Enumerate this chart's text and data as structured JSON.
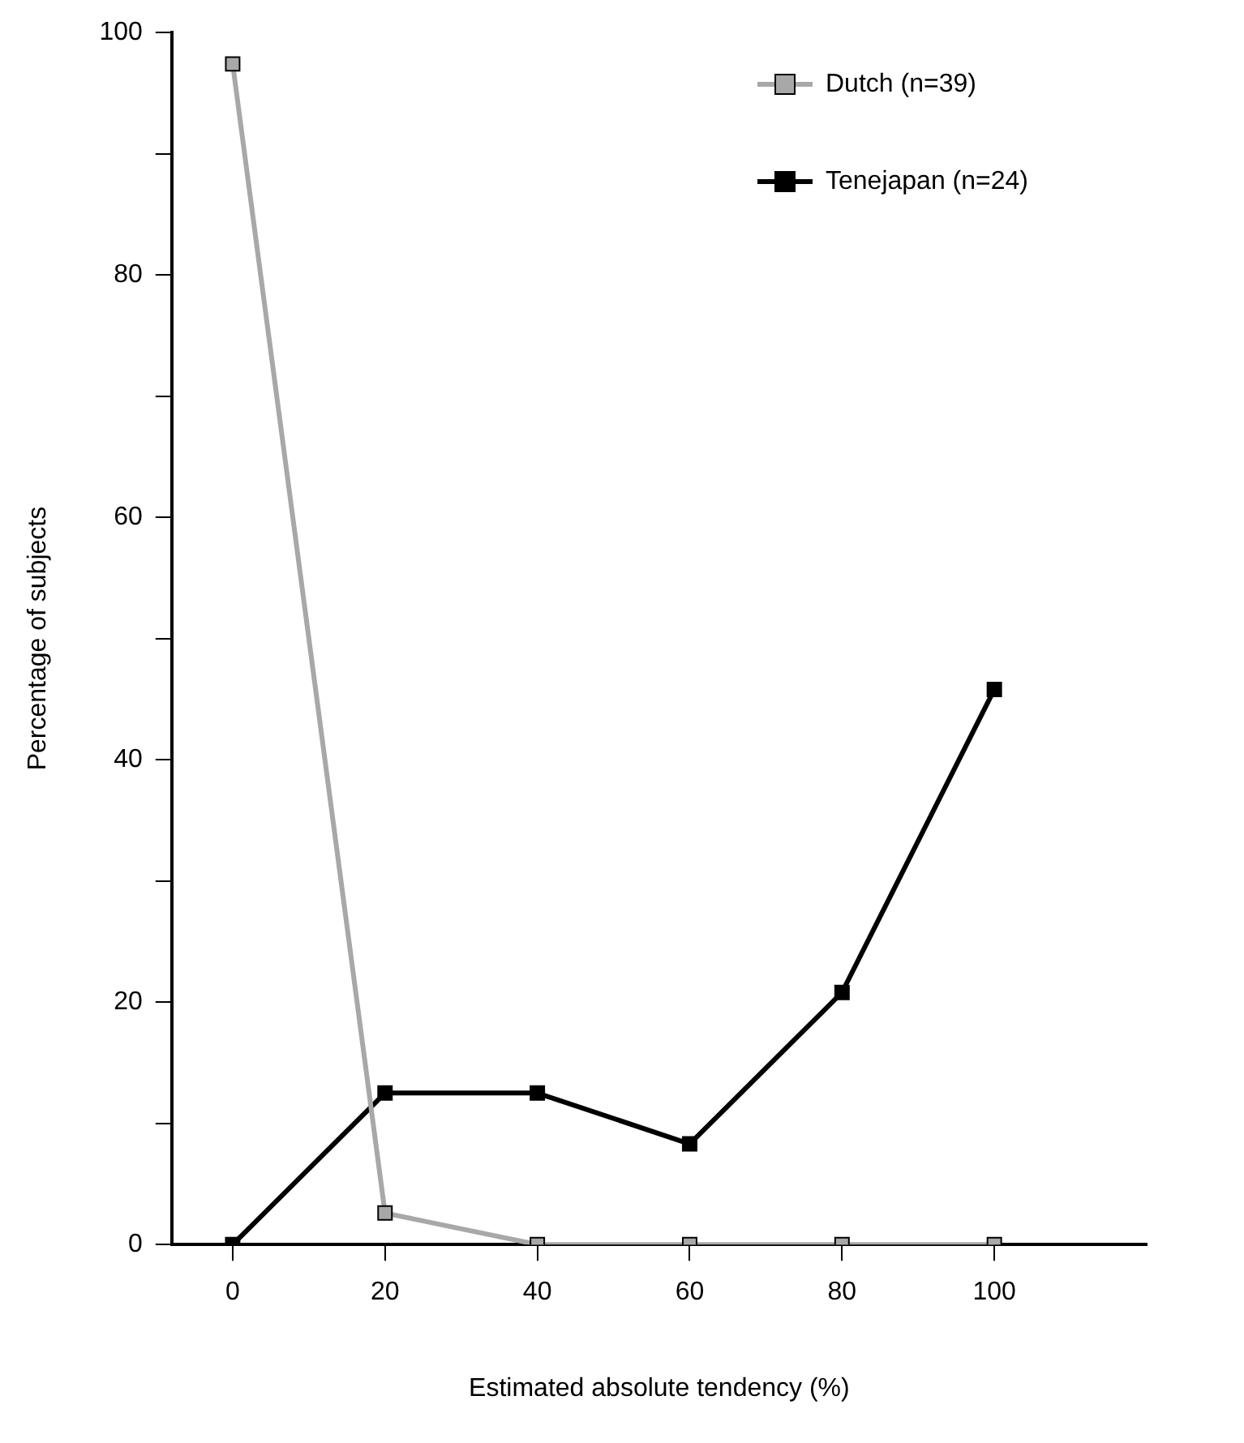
{
  "chart_data": {
    "type": "line",
    "xlabel": "Estimated absolute tendency (%)",
    "ylabel": "Percentage of subjects",
    "x": [
      0,
      20,
      40,
      60,
      80,
      100
    ],
    "series": [
      {
        "name": "Dutch (n=39)",
        "color": "#a8a8a8",
        "values": [
          97.4,
          2.6,
          0,
          0,
          0,
          0
        ]
      },
      {
        "name": "Tenejapan (n=24)",
        "color": "#000000",
        "values": [
          0,
          12.5,
          12.5,
          8.3,
          20.8,
          45.8
        ]
      }
    ],
    "xlim": [
      -8,
      120
    ],
    "xticks": [
      0,
      20,
      40,
      60,
      80,
      100
    ],
    "ylim": [
      0,
      100
    ],
    "yticks": [
      0,
      {
        "value": 10,
        "label": null
      },
      20,
      {
        "value": 30,
        "label": null
      },
      40,
      {
        "value": 50,
        "label": null
      },
      60,
      {
        "value": 70,
        "label": null
      },
      80,
      {
        "value": 90,
        "label": null
      },
      100
    ],
    "grid": false,
    "legend": "top right",
    "marker": "square",
    "line_style": "solid"
  }
}
